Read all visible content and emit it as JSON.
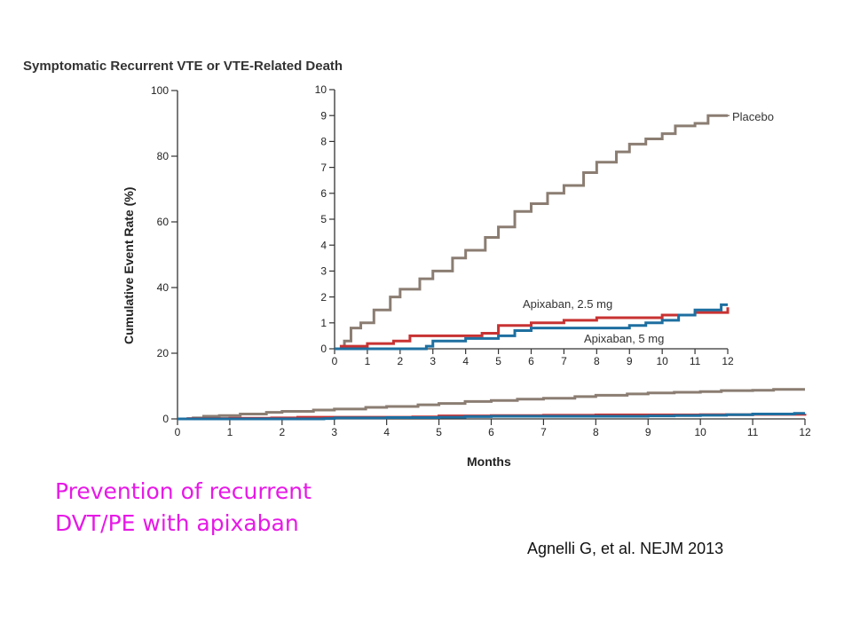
{
  "chart_data": [
    {
      "type": "line",
      "panel": "main",
      "title": "Symptomatic Recurrent VTE or VTE-Related Death",
      "xlabel": "Months",
      "ylabel": "Cumulative Event Rate (%)",
      "xlim": [
        0,
        12
      ],
      "ylim": [
        0,
        100
      ],
      "xticks": [
        0,
        1,
        2,
        3,
        4,
        5,
        6,
        7,
        8,
        9,
        10,
        11,
        12
      ],
      "yticks": [
        0,
        20,
        40,
        60,
        80,
        100
      ],
      "grid": false,
      "series": [
        {
          "name": "Placebo",
          "color": "#8b7d72",
          "step": true,
          "x": [
            0,
            0.3,
            0.5,
            0.8,
            1.2,
            1.7,
            2.0,
            2.6,
            3.0,
            3.6,
            4.0,
            4.6,
            5.0,
            5.5,
            6.0,
            6.5,
            7.0,
            7.6,
            8.0,
            8.6,
            9.0,
            9.5,
            10.0,
            10.4,
            11.0,
            11.4,
            12.0
          ],
          "y": [
            0,
            0.3,
            0.8,
            1.0,
            1.5,
            2.0,
            2.3,
            2.7,
            3.0,
            3.5,
            3.8,
            4.3,
            4.7,
            5.3,
            5.6,
            6.0,
            6.3,
            6.8,
            7.2,
            7.6,
            7.9,
            8.1,
            8.3,
            8.6,
            8.7,
            9.0,
            9.0
          ]
        },
        {
          "name": "Apixaban, 2.5 mg",
          "color": "#c83232",
          "step": true,
          "x": [
            0,
            0.2,
            1.0,
            1.8,
            2.3,
            3.0,
            4.5,
            5.0,
            6.0,
            7.0,
            8.0,
            9.0,
            10.0,
            11.0,
            12.0
          ],
          "y": [
            0,
            0.1,
            0.2,
            0.3,
            0.5,
            0.5,
            0.6,
            0.9,
            1.0,
            1.1,
            1.2,
            1.2,
            1.3,
            1.4,
            1.6
          ]
        },
        {
          "name": "Apixaban, 5 mg",
          "color": "#1e6fa0",
          "step": true,
          "x": [
            0,
            2.8,
            3.0,
            4.0,
            5.0,
            5.5,
            6.0,
            8.0,
            9.0,
            9.5,
            10.0,
            10.5,
            11.0,
            11.8,
            12.0
          ],
          "y": [
            0,
            0.1,
            0.3,
            0.4,
            0.5,
            0.7,
            0.8,
            0.8,
            0.9,
            1.0,
            1.1,
            1.3,
            1.5,
            1.7,
            1.7
          ]
        }
      ]
    },
    {
      "type": "line",
      "panel": "inset",
      "xlim": [
        0,
        12
      ],
      "ylim": [
        0,
        10
      ],
      "xticks": [
        0,
        1,
        2,
        3,
        4,
        5,
        6,
        7,
        8,
        9,
        10,
        11,
        12
      ],
      "yticks": [
        0,
        1,
        2,
        3,
        4,
        5,
        6,
        7,
        8,
        9,
        10
      ],
      "grid": false,
      "series_ref": "main"
    }
  ],
  "caption_line1": "Prevention of recurrent",
  "caption_line2": "DVT/PE with apixaban",
  "citation": "Agnelli G, et al. NEJM 2013",
  "colors": {
    "caption": "#e619e6",
    "axis": "#333333"
  }
}
